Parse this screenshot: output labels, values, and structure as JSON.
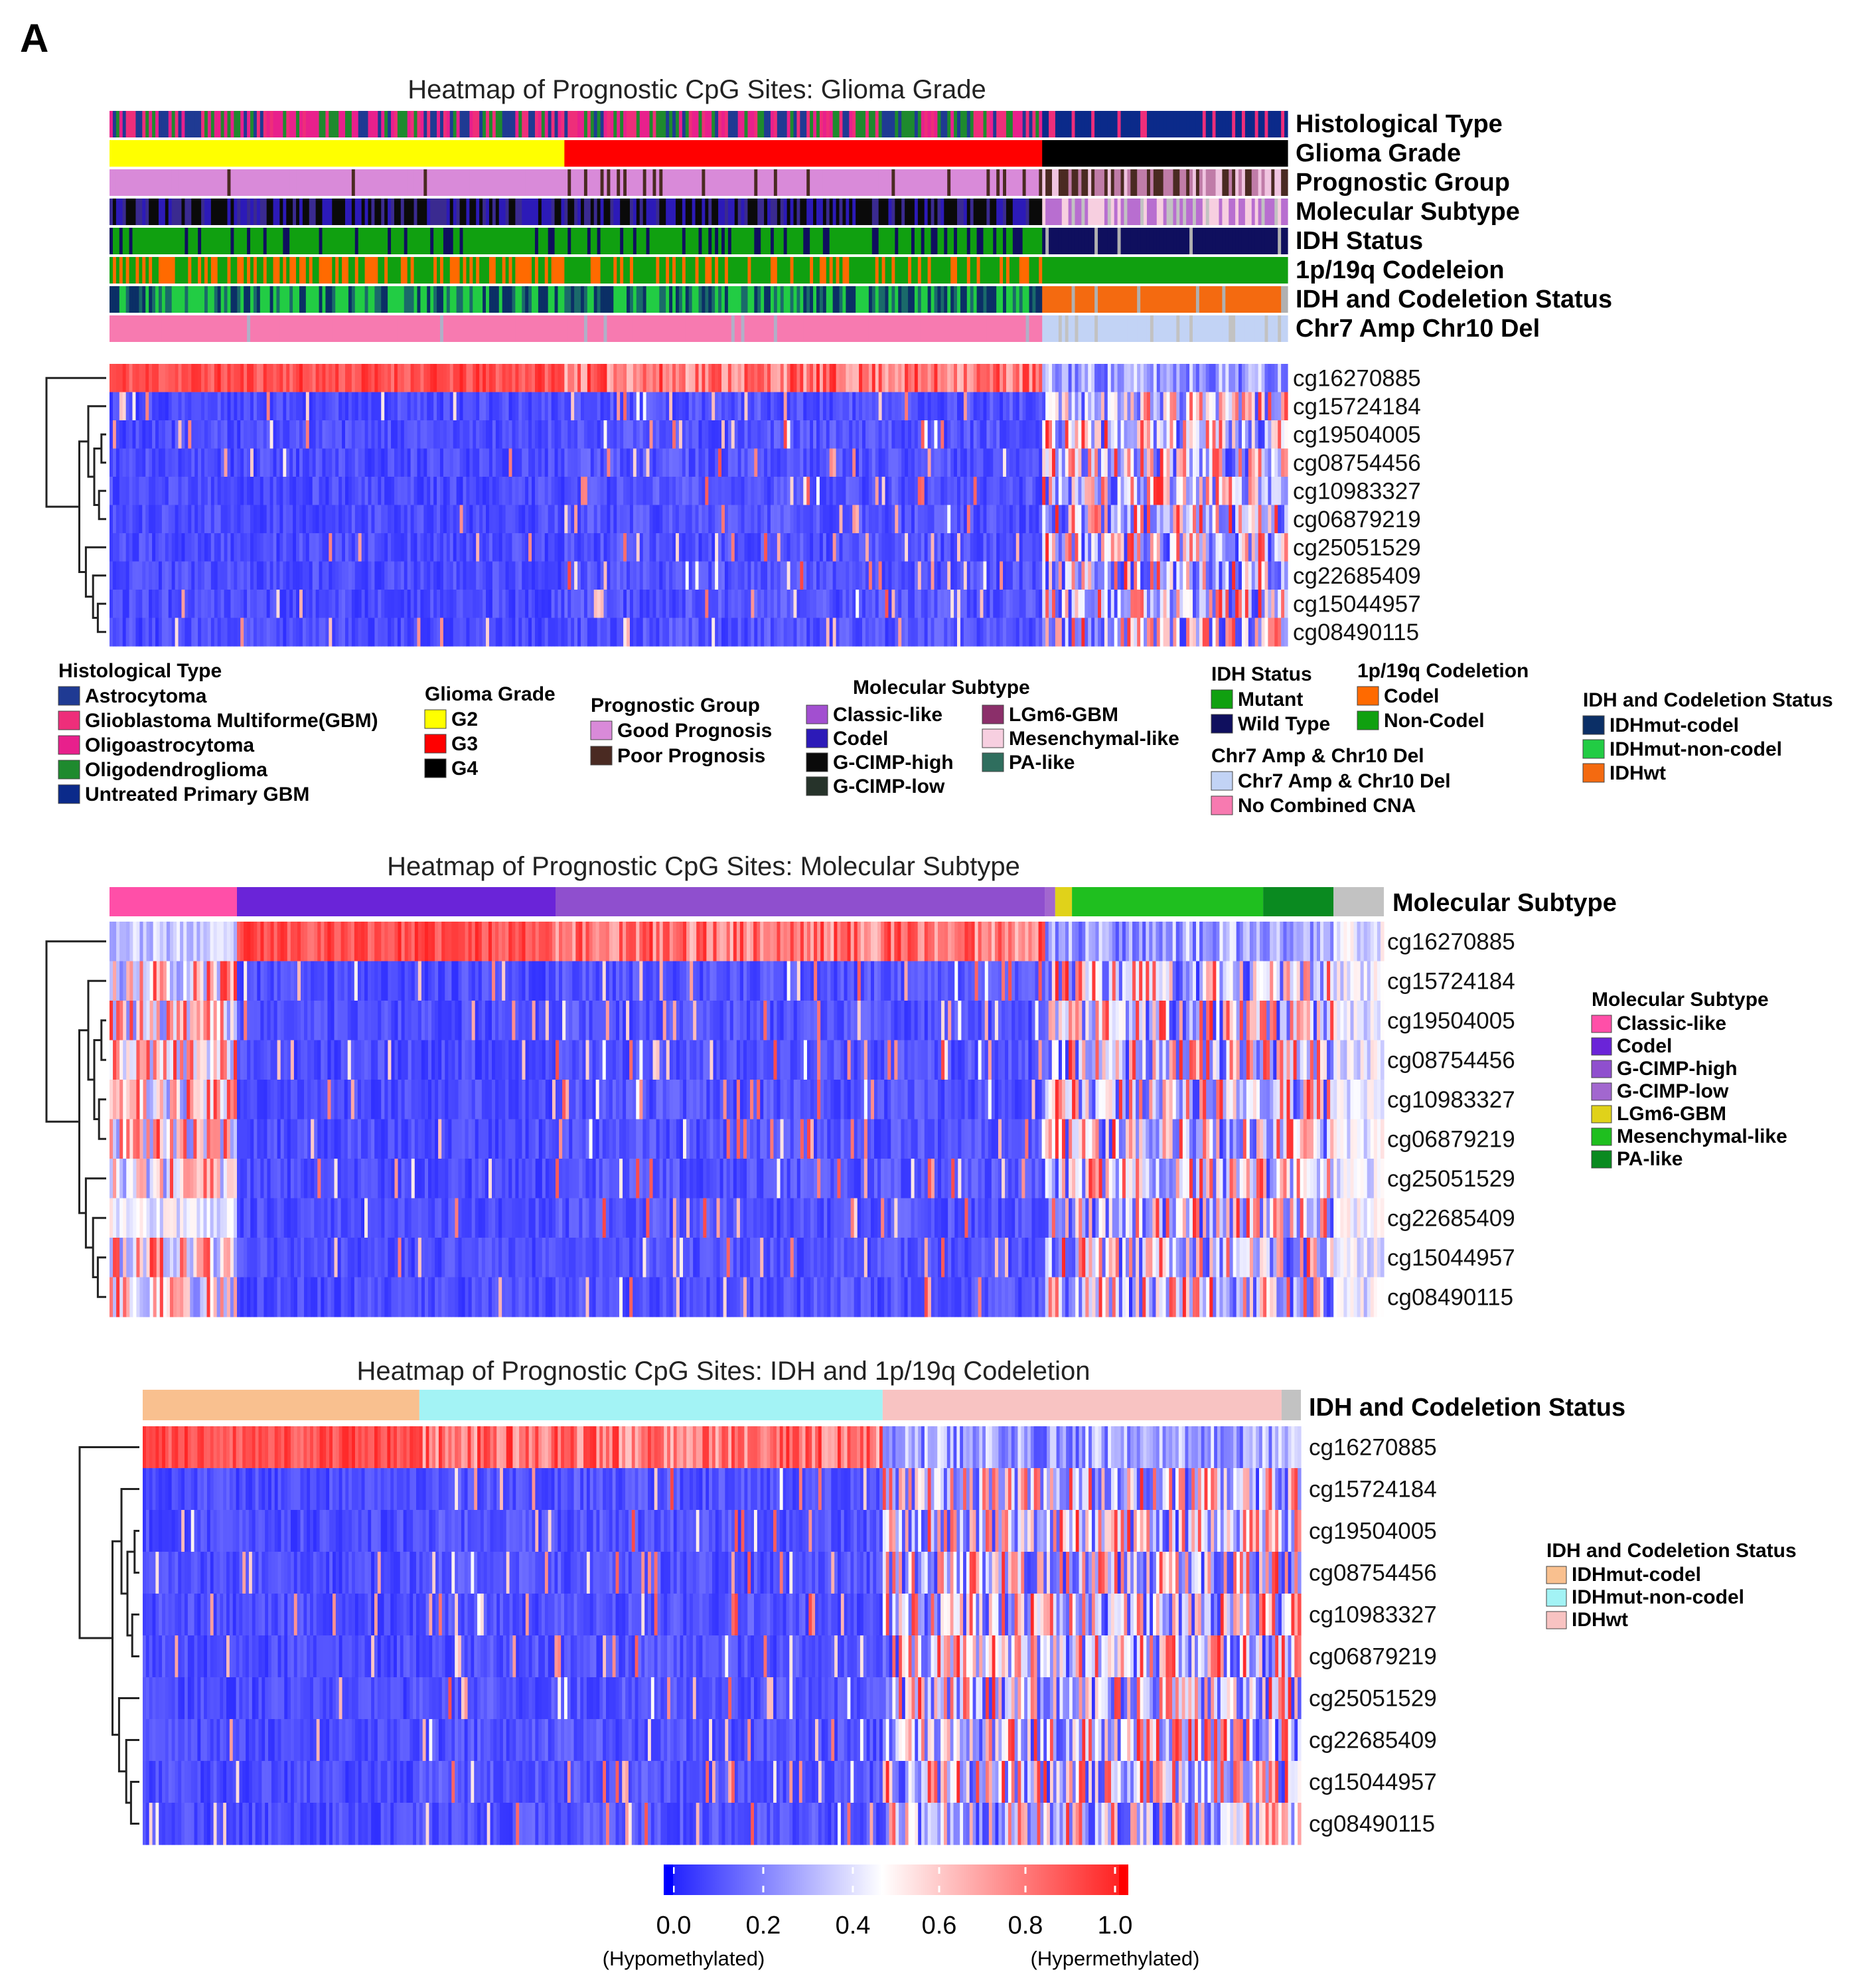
{
  "panel_letter": "A",
  "chart_data": [
    {
      "type": "heatmap",
      "title": "Heatmap of Prognostic CpG Sites: Glioma Grade",
      "rows": [
        "cg16270885",
        "cg15724184",
        "cg19504005",
        "cg08754456",
        "cg10983327",
        "cg06879219",
        "cg25051529",
        "cg22685409",
        "cg15044957",
        "cg08490115"
      ],
      "value_range": [
        0.0,
        1.0
      ],
      "column_groups": [
        {
          "group": "G2",
          "fraction": 0.385,
          "profile": "idh_mutant"
        },
        {
          "group": "G3",
          "fraction": 0.405,
          "profile": "idh_mutant_mixed"
        },
        {
          "group": "G4",
          "fraction": 0.21,
          "profile": "idh_wildtype"
        }
      ],
      "annotation_tracks": [
        "Histological Type",
        "Glioma Grade",
        "Prognostic Group",
        "Molecular Subtype",
        "IDH Status",
        "1p/19q Codeleion",
        "IDH and Codeletion Status",
        "Chr7 Amp Chr10 Del"
      ],
      "legends": [
        {
          "title": "Histological Type",
          "items": [
            {
              "label": "Astrocytoma",
              "color": "#1f3a93"
            },
            {
              "label": "Glioblastoma Multiforme(GBM)",
              "color": "#ee2e7a"
            },
            {
              "label": "Oligoastrocytoma",
              "color": "#e8208c"
            },
            {
              "label": "Oligodendroglioma",
              "color": "#1e8a2e"
            },
            {
              "label": "Untreated Primary GBM",
              "color": "#0b2a8a"
            }
          ]
        },
        {
          "title": "Glioma Grade",
          "items": [
            {
              "label": "G2",
              "color": "#ffff00"
            },
            {
              "label": "G3",
              "color": "#ff0000"
            },
            {
              "label": "G4",
              "color": "#000000"
            }
          ]
        },
        {
          "title": "Prognostic Group",
          "items": [
            {
              "label": "Good Prognosis",
              "color": "#d98ad9"
            },
            {
              "label": "Poor Prognosis",
              "color": "#4a2a22"
            }
          ]
        },
        {
          "title": "Molecular Subtype",
          "items": [
            {
              "label": "Classic-like",
              "color": "#a24fd0"
            },
            {
              "label": "Codel",
              "color": "#2c1ab8"
            },
            {
              "label": "G-CIMP-high",
              "color": "#0a0a0a"
            },
            {
              "label": "G-CIMP-low",
              "color": "#26332a"
            },
            {
              "label": "LGm6-GBM",
              "color": "#8b2f6a"
            },
            {
              "label": "Mesenchymal-like",
              "color": "#f7cfe0"
            },
            {
              "label": "PA-like",
              "color": "#2f6e5e"
            }
          ]
        },
        {
          "title": "IDH Status",
          "items": [
            {
              "label": "Mutant",
              "color": "#10a010"
            },
            {
              "label": "Wild Type",
              "color": "#0f0f5e"
            }
          ]
        },
        {
          "title": "1p/19q Codeletion",
          "items": [
            {
              "label": "Codel",
              "color": "#ff6a00"
            },
            {
              "label": "Non-Codel",
              "color": "#10a010"
            }
          ]
        },
        {
          "title": "Chr7 Amp & Chr10 Del",
          "items": [
            {
              "label": "Chr7 Amp & Chr10 Del",
              "color": "#c2d3f5"
            },
            {
              "label": "No Combined CNA",
              "color": "#f77ab0"
            }
          ]
        },
        {
          "title": "IDH and Codeletion Status",
          "items": [
            {
              "label": "IDHmut-codel",
              "color": "#0b2f66"
            },
            {
              "label": "IDHmut-non-codel",
              "color": "#22cc44"
            },
            {
              "label": "IDHwt",
              "color": "#f46a10"
            }
          ]
        }
      ]
    },
    {
      "type": "heatmap",
      "title": "Heatmap of Prognostic CpG Sites: Molecular Subtype",
      "rows": [
        "cg16270885",
        "cg15724184",
        "cg19504005",
        "cg08754456",
        "cg10983327",
        "cg06879219",
        "cg25051529",
        "cg22685409",
        "cg15044957",
        "cg08490115"
      ],
      "value_range": [
        0.0,
        1.0
      ],
      "column_groups": [
        {
          "group": "Classic-like",
          "fraction": 0.1,
          "color": "#ff4fa8",
          "profile": "classic_like"
        },
        {
          "group": "Codel",
          "fraction": 0.25,
          "color": "#6a24d8",
          "profile": "hyper_strong"
        },
        {
          "group": "G-CIMP-high",
          "fraction": 0.385,
          "color": "#8f4fce",
          "profile": "hyper"
        },
        {
          "group": "G-CIMP-low",
          "fraction": 0.008,
          "color": "#a267cf",
          "profile": "mixed"
        },
        {
          "group": "LGm6-GBM",
          "fraction": 0.012,
          "color": "#e0d21a",
          "profile": "mixed"
        },
        {
          "group": "Mesenchymal-like",
          "fraction": 0.15,
          "color": "#1fbf1f",
          "profile": "mixed"
        },
        {
          "group": "PA-like",
          "fraction": 0.055,
          "color": "#0a8a20",
          "profile": "mixed"
        },
        {
          "group": "NA",
          "fraction": 0.04,
          "color": "#c2c2c2",
          "profile": "pale"
        }
      ],
      "annotation_tracks": [
        "Molecular Subtype"
      ],
      "legends": [
        {
          "title": "Molecular Subtype",
          "items": [
            {
              "label": "Classic-like",
              "color": "#ff4fa8"
            },
            {
              "label": "Codel",
              "color": "#6a24d8"
            },
            {
              "label": "G-CIMP-high",
              "color": "#8f4fce"
            },
            {
              "label": "G-CIMP-low",
              "color": "#a267cf"
            },
            {
              "label": "LGm6-GBM",
              "color": "#e0d21a"
            },
            {
              "label": "Mesenchymal-like",
              "color": "#1fbf1f"
            },
            {
              "label": "PA-like",
              "color": "#0a8a20"
            }
          ]
        }
      ]
    },
    {
      "type": "heatmap",
      "title": "Heatmap of Prognostic CpG Sites: IDH and 1p/19q Codeletion",
      "rows": [
        "cg16270885",
        "cg15724184",
        "cg19504005",
        "cg08754456",
        "cg10983327",
        "cg06879219",
        "cg25051529",
        "cg22685409",
        "cg15044957",
        "cg08490115"
      ],
      "value_range": [
        0.0,
        1.0
      ],
      "column_groups": [
        {
          "group": "IDHmut-codel",
          "fraction": 0.24,
          "color": "#f9c08f",
          "profile": "hyper_strong"
        },
        {
          "group": "IDHmut-non-codel",
          "fraction": 0.4,
          "color": "#a3f3f5",
          "profile": "hyper"
        },
        {
          "group": "IDHwt",
          "fraction": 0.345,
          "color": "#f8c3c2",
          "profile": "mixed"
        },
        {
          "group": "NA",
          "fraction": 0.015,
          "color": "#c2c2c2",
          "profile": "mixed"
        }
      ],
      "annotation_tracks": [
        "IDH and Codeletion Status"
      ],
      "legends": [
        {
          "title": "IDH and Codeletion Status",
          "items": [
            {
              "label": "IDHmut-codel",
              "color": "#f9c08f"
            },
            {
              "label": "IDHmut-non-codel",
              "color": "#a3f3f5"
            },
            {
              "label": "IDHwt",
              "color": "#f8c3c2"
            }
          ]
        }
      ]
    }
  ],
  "colorbar": {
    "ticks": [
      "0.0",
      "0.2",
      "0.4",
      "0.6",
      "0.8",
      "1.0"
    ],
    "low_label": "(Hypomethylated)",
    "high_label": "(Hypermethylated)",
    "low_color": "#1a1aff",
    "mid_color": "#ffffff",
    "high_color": "#ff1a1a"
  }
}
